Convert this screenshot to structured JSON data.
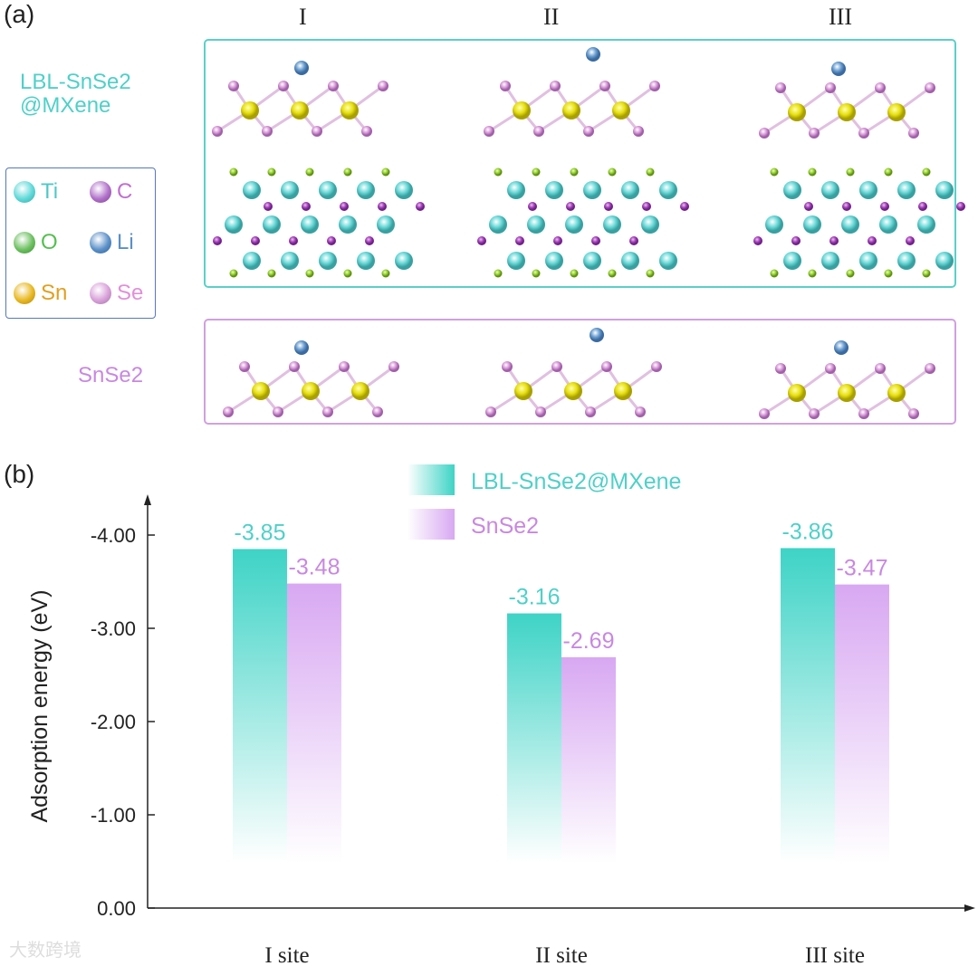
{
  "panel_a": {
    "label": "(a)",
    "sites": [
      "I",
      "II",
      "III"
    ],
    "row1_label": [
      "LBL-SnSe2",
      "@MXene"
    ],
    "row2_label": "SnSe2",
    "legend": [
      {
        "name": "Ti",
        "color": "#5ed8d8",
        "text_color": "#4fc8c8"
      },
      {
        "name": "C",
        "color": "#b070c8",
        "text_color": "#c070d0"
      },
      {
        "name": "O",
        "color": "#6cc060",
        "text_color": "#55c050"
      },
      {
        "name": "Li",
        "color": "#5a90c8",
        "text_color": "#5a90c8"
      },
      {
        "name": "Sn",
        "color": "#e8b820",
        "text_color": "#e0a020"
      },
      {
        "name": "Se",
        "color": "#d8a0d8",
        "text_color": "#e090d8"
      }
    ]
  },
  "panel_b": {
    "label": "(b)"
  },
  "watermark": "大数跨境",
  "chart_data": {
    "type": "bar",
    "categories": [
      "I site",
      "II site",
      "III site"
    ],
    "series": [
      {
        "name": "LBL-SnSe2@MXene",
        "values": [
          -3.85,
          -3.16,
          -3.86
        ],
        "labels": [
          "-3.85",
          "-3.16",
          "-3.86"
        ],
        "color": "#3ed3c6"
      },
      {
        "name": "SnSe2",
        "values": [
          -3.48,
          -2.69,
          -3.47
        ],
        "labels": [
          "-3.48",
          "-2.69",
          "-3.47"
        ],
        "color": "#d8a8f2"
      }
    ],
    "ylabel": "Adsorption energy (eV)",
    "xlabel": "",
    "yticks": [
      "0.00",
      "-1.00",
      "-2.00",
      "-3.00",
      "-4.00"
    ],
    "ytick_values": [
      0,
      -1,
      -2,
      -3,
      -4
    ],
    "ylim": [
      0,
      -4.5
    ],
    "legend_position": "top-center"
  }
}
